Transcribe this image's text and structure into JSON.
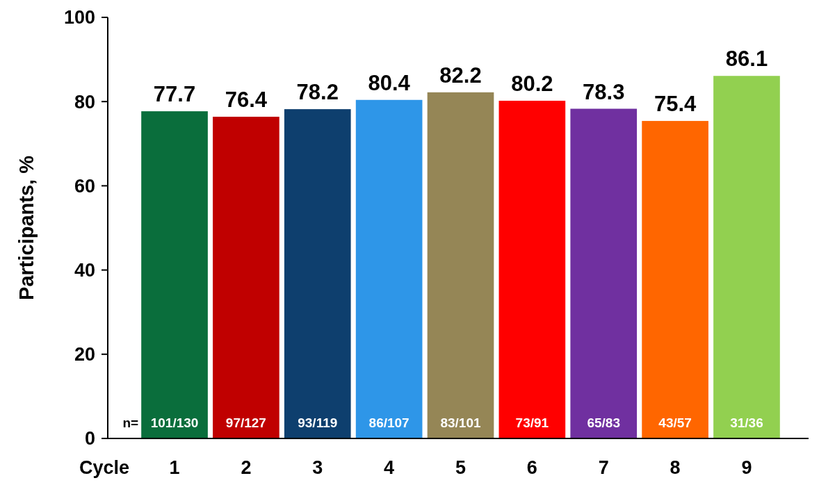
{
  "chart_data": {
    "type": "bar",
    "xlabel": "Cycle",
    "ylabel": "Participants, %",
    "categories": [
      "1",
      "2",
      "3",
      "4",
      "5",
      "6",
      "7",
      "8",
      "9"
    ],
    "values": [
      77.7,
      76.4,
      78.2,
      80.4,
      82.2,
      80.2,
      78.3,
      75.4,
      86.1
    ],
    "colors": [
      "#0a6e3c",
      "#c00000",
      "#0e3f6e",
      "#2e96e8",
      "#958656",
      "#ff0000",
      "#7030a0",
      "#ff6600",
      "#92d050"
    ],
    "ylim": [
      0,
      100
    ],
    "yticks": [
      0,
      20,
      40,
      60,
      80,
      100
    ],
    "grid": false,
    "data_labels": true,
    "annotations": [
      "n=",
      {
        "text": "101/130",
        "x": "1",
        "y": 0
      },
      {
        "text": "97/127",
        "x": "2",
        "y": 0
      },
      {
        "text": "93/119",
        "x": "3",
        "y": 0
      },
      {
        "text": "86/107",
        "x": "4",
        "y": 0
      },
      {
        "text": "83/101",
        "x": "5",
        "y": 0
      },
      {
        "text": "73/91",
        "x": "6",
        "y": 0
      },
      {
        "text": "65/83",
        "x": "7",
        "y": 0
      },
      {
        "text": "43/57",
        "x": "8",
        "y": 0
      },
      {
        "text": "31/36",
        "x": "9",
        "y": 0
      }
    ]
  }
}
